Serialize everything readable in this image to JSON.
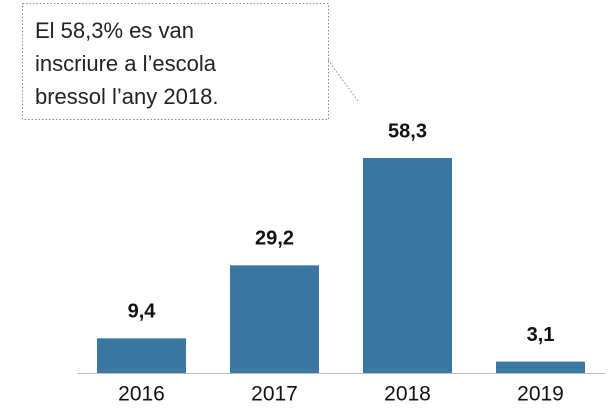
{
  "chart_data": {
    "type": "bar",
    "annotation": [
      "El 58,3% es van",
      "inscriure a l’escola",
      "bressol l’any 2018."
    ],
    "categories": [
      "2016",
      "2017",
      "2018",
      "2019"
    ],
    "values": [
      9.4,
      29.2,
      58.3,
      3.1
    ],
    "value_labels": [
      "9,4",
      "29,2",
      "58,3",
      "3,1"
    ],
    "color": "#3a77a3"
  }
}
